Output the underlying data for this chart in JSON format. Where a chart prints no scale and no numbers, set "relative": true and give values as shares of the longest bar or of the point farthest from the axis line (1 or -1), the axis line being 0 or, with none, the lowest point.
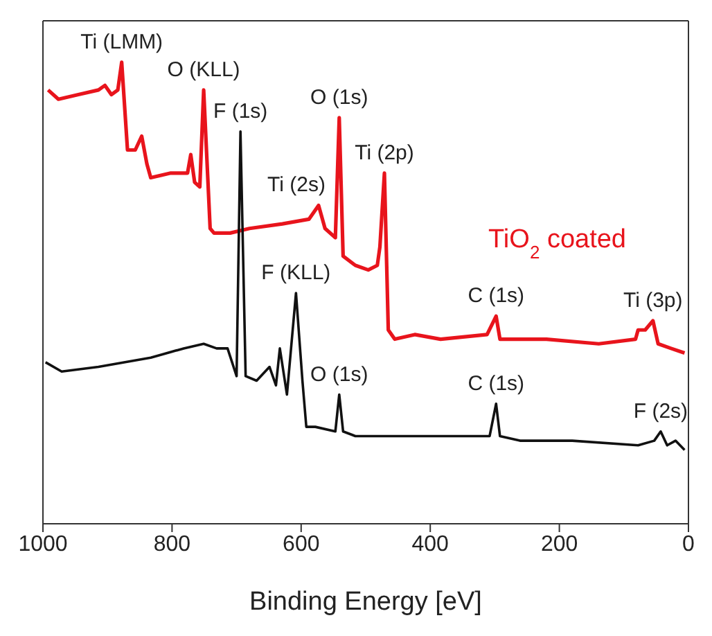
{
  "chart_data": {
    "type": "line",
    "relative": true,
    "xlabel": "Binding Energy [eV]",
    "xlim": [
      1000,
      0
    ],
    "xticks": [
      1000,
      800,
      600,
      400,
      200,
      0
    ],
    "legend": false,
    "marker": "none",
    "line_style": "solid",
    "series": [
      {
        "name": "TiO$_{2}$ coated",
        "color": "#e8141c",
        "x": [
          992,
          976,
          945,
          914,
          904,
          894,
          884,
          878,
          869,
          857,
          847,
          839,
          833,
          802,
          776,
          771,
          765,
          757,
          751,
          741,
          735,
          710,
          680,
          629,
          588,
          573,
          563,
          547,
          541,
          535,
          516,
          496,
          482,
          478,
          471,
          465,
          455,
          424,
          384,
          312,
          298,
          292,
          220,
          139,
          82,
          78,
          67,
          55,
          47,
          27,
          6
        ],
        "values": [
          0.94,
          0.92,
          0.93,
          0.94,
          0.95,
          0.93,
          0.94,
          1.0,
          0.81,
          0.81,
          0.84,
          0.78,
          0.75,
          0.76,
          0.76,
          0.8,
          0.74,
          0.73,
          0.94,
          0.64,
          0.63,
          0.63,
          0.64,
          0.65,
          0.66,
          0.69,
          0.64,
          0.62,
          0.88,
          0.58,
          0.56,
          0.55,
          0.56,
          0.6,
          0.76,
          0.42,
          0.4,
          0.41,
          0.4,
          0.41,
          0.45,
          0.4,
          0.4,
          0.39,
          0.4,
          0.42,
          0.42,
          0.44,
          0.39,
          0.38,
          0.37
        ]
      },
      {
        "color": "#111111",
        "x": [
          996,
          971,
          914,
          833,
          782,
          751,
          731,
          714,
          700,
          694,
          686,
          669,
          649,
          639,
          633,
          622,
          608,
          598,
          592,
          578,
          547,
          541,
          535,
          516,
          506,
          465,
          322,
          308,
          298,
          292,
          261,
          180,
          78,
          53,
          43,
          33,
          20,
          6
        ],
        "values": [
          0.35,
          0.33,
          0.34,
          0.36,
          0.38,
          0.39,
          0.38,
          0.38,
          0.32,
          0.85,
          0.32,
          0.31,
          0.34,
          0.3,
          0.38,
          0.28,
          0.5,
          0.31,
          0.21,
          0.21,
          0.2,
          0.28,
          0.2,
          0.19,
          0.19,
          0.19,
          0.19,
          0.19,
          0.26,
          0.19,
          0.18,
          0.18,
          0.17,
          0.18,
          0.2,
          0.17,
          0.18,
          0.16
        ]
      }
    ],
    "annotations": [
      {
        "text": "Ti (LMM)",
        "x": 878,
        "y": 1.0
      },
      {
        "text": "O (KLL)",
        "x": 751,
        "y": 0.94
      },
      {
        "text": "F (1s)",
        "x": 694,
        "y": 0.85
      },
      {
        "text": "O (1s)",
        "x": 541,
        "y": 0.88
      },
      {
        "text": "Ti (2s)",
        "x": 573,
        "y": 0.69
      },
      {
        "text": "Ti (2p)",
        "x": 471,
        "y": 0.76
      },
      {
        "text": "C (1s)",
        "x": 298,
        "y": 0.45
      },
      {
        "text": "Ti (3p)",
        "x": 55,
        "y": 0.44
      },
      {
        "text": "F (KLL)",
        "x": 608,
        "y": 0.5
      },
      {
        "text": "O (1s)",
        "x": 541,
        "y": 0.28
      },
      {
        "text": "C (1s)",
        "x": 298,
        "y": 0.26
      },
      {
        "text": "F (2s)",
        "x": 43,
        "y": 0.2
      }
    ]
  }
}
